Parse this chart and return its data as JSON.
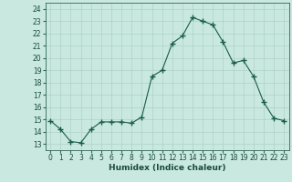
{
  "x": [
    0,
    1,
    2,
    3,
    4,
    5,
    6,
    7,
    8,
    9,
    10,
    11,
    12,
    13,
    14,
    15,
    16,
    17,
    18,
    19,
    20,
    21,
    22,
    23
  ],
  "y": [
    14.9,
    14.2,
    13.2,
    13.1,
    14.2,
    14.8,
    14.8,
    14.8,
    14.7,
    15.2,
    18.5,
    19.0,
    21.2,
    21.8,
    23.3,
    23.0,
    22.7,
    21.3,
    19.6,
    19.8,
    18.5,
    16.4,
    15.1,
    14.9
  ],
  "line_color": "#1a5c4a",
  "marker": "+",
  "marker_size": 4,
  "bg_color": "#c8e8e0",
  "grid_color": "#aaccc4",
  "xlabel": "Humidex (Indice chaleur)",
  "xlim": [
    -0.5,
    23.5
  ],
  "ylim": [
    12.5,
    24.5
  ],
  "yticks": [
    13,
    14,
    15,
    16,
    17,
    18,
    19,
    20,
    21,
    22,
    23,
    24
  ],
  "xticks": [
    0,
    1,
    2,
    3,
    4,
    5,
    6,
    7,
    8,
    9,
    10,
    11,
    12,
    13,
    14,
    15,
    16,
    17,
    18,
    19,
    20,
    21,
    22,
    23
  ],
  "label_fontsize": 6.5,
  "tick_fontsize": 5.5
}
